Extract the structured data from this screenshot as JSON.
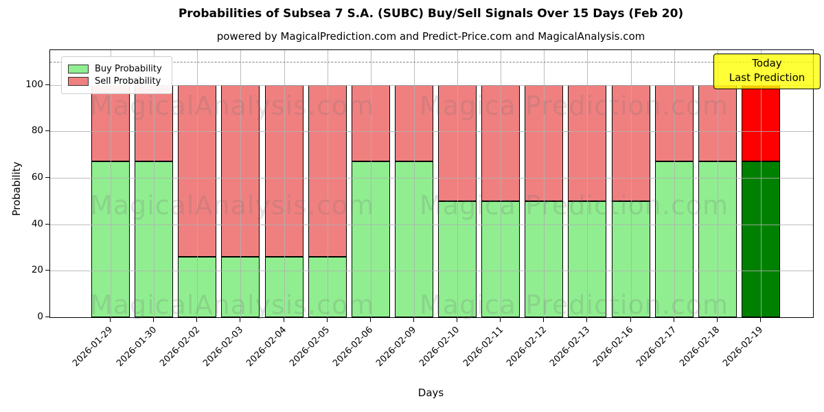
{
  "header": {
    "title": "Probabilities of Subsea 7 S.A. (SUBC) Buy/Sell Signals Over 15 Days (Feb 20)",
    "subtitle": "powered by MagicalPrediction.com and Predict-Price.com and MagicalAnalysis.com"
  },
  "annotation": {
    "lines": [
      "Today",
      "Last Prediction"
    ],
    "bg_color": "#FFFF00"
  },
  "watermarks": {
    "left_text": "MagicalAnalysis.com",
    "right_text": "Magica Prediction.com",
    "rows": 3
  },
  "colors": {
    "buy": "#90EE90",
    "sell": "#F08080",
    "buy_today": "#008000",
    "sell_today": "#FF0000",
    "bar_edge": "#000000",
    "grid": "#b0b0b0",
    "dashed_line": "#7f7f7f"
  },
  "chart_data": {
    "type": "bar",
    "stacked": true,
    "title": "Probabilities of Subsea 7 S.A. (SUBC) Buy/Sell Signals Over 15 Days (Feb 20)",
    "subtitle": "powered by MagicalPrediction.com and Predict-Price.com and MagicalAnalysis.com",
    "xlabel": "Days",
    "ylabel": "Probability",
    "ylim": [
      0,
      115
    ],
    "yticks": [
      0,
      20,
      40,
      60,
      80,
      100
    ],
    "dashed_line_y": 110,
    "grid": true,
    "legend_position": "upper-left",
    "categories": [
      "2026-01-29",
      "2026-01-30",
      "2026-02-02",
      "2026-02-03",
      "2026-02-04",
      "2026-02-05",
      "2026-02-06",
      "2026-02-09",
      "2026-02-10",
      "2026-02-11",
      "2026-02-12",
      "2026-02-13",
      "2026-02-16",
      "2026-02-17",
      "2026-02-18",
      "2026-02-19"
    ],
    "series": [
      {
        "name": "Buy Probability",
        "color": "#90EE90",
        "today_color": "#008000",
        "values": [
          67,
          67,
          26,
          26,
          26,
          26,
          67,
          67,
          50,
          50,
          50,
          50,
          50,
          67,
          67,
          67
        ]
      },
      {
        "name": "Sell Probability",
        "color": "#F08080",
        "today_color": "#FF0000",
        "values": [
          33,
          33,
          74,
          74,
          74,
          74,
          33,
          33,
          50,
          50,
          50,
          50,
          50,
          33,
          33,
          33
        ]
      }
    ],
    "today_index": 15
  }
}
